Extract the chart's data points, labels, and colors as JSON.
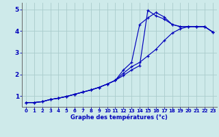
{
  "title": "Graphe des températures (°c)",
  "background_color": "#ceeaea",
  "grid_color": "#aacccc",
  "line_color": "#0000bb",
  "xlim": [
    -0.5,
    23.5
  ],
  "ylim": [
    0.5,
    5.3
  ],
  "yticks": [
    1,
    2,
    3,
    4,
    5
  ],
  "xticks": [
    0,
    1,
    2,
    3,
    4,
    5,
    6,
    7,
    8,
    9,
    10,
    11,
    12,
    13,
    14,
    15,
    16,
    17,
    18,
    19,
    20,
    21,
    22,
    23
  ],
  "series1_x": [
    0,
    1,
    2,
    3,
    4,
    5,
    6,
    7,
    8,
    9,
    10,
    11,
    12,
    13,
    14,
    15,
    16,
    17,
    18,
    19,
    20,
    21,
    22,
    23
  ],
  "series1_y": [
    0.7,
    0.7,
    0.74,
    0.84,
    0.9,
    0.98,
    1.08,
    1.18,
    1.28,
    1.4,
    1.55,
    1.72,
    2.05,
    2.35,
    2.55,
    2.85,
    3.15,
    3.55,
    3.9,
    4.1,
    4.2,
    4.2,
    4.2,
    3.95
  ],
  "series2_x": [
    0,
    1,
    2,
    3,
    4,
    5,
    6,
    7,
    8,
    9,
    10,
    11,
    12,
    13,
    14,
    15,
    16,
    17,
    18,
    19,
    20,
    21,
    22,
    23
  ],
  "series2_y": [
    0.7,
    0.7,
    0.74,
    0.84,
    0.9,
    0.98,
    1.08,
    1.18,
    1.28,
    1.4,
    1.55,
    1.72,
    2.2,
    2.55,
    4.3,
    4.6,
    4.85,
    4.65,
    4.3,
    4.2,
    4.2,
    4.2,
    4.2,
    3.95
  ],
  "series3_x": [
    0,
    1,
    2,
    3,
    4,
    5,
    6,
    7,
    8,
    9,
    10,
    11,
    12,
    13,
    14,
    15,
    16,
    17,
    18,
    19,
    20,
    21,
    22,
    23
  ],
  "series3_y": [
    0.7,
    0.7,
    0.74,
    0.84,
    0.9,
    0.98,
    1.08,
    1.18,
    1.28,
    1.4,
    1.55,
    1.72,
    1.95,
    2.2,
    2.4,
    4.95,
    4.7,
    4.55,
    4.3,
    4.2,
    4.2,
    4.2,
    4.2,
    3.95
  ]
}
